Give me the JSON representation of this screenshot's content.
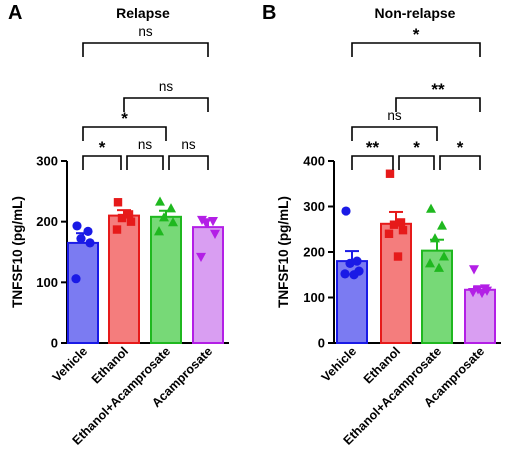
{
  "chart_data": [
    {
      "type": "bar",
      "panel": "A",
      "title": "Relapse",
      "ylabel": "TNFSF10 (pg/mL)",
      "ylim": [
        0,
        300
      ],
      "yticks": [
        0,
        100,
        200,
        300
      ],
      "categories": [
        "Vehicle",
        "Ethanol",
        "Ethanol+Acamprosate",
        "Acamprosate"
      ],
      "colors": {
        "fill": [
          "#7b7bf2",
          "#f47d7d",
          "#77d977",
          "#d99ef2"
        ],
        "stroke": [
          "#1a1ae6",
          "#e61a1a",
          "#1fb81f",
          "#b31fe6"
        ]
      },
      "markers": [
        "circle",
        "square",
        "triangle-up",
        "triangle-down"
      ],
      "values": [
        165,
        210,
        208,
        191
      ],
      "sem": [
        16,
        9,
        10,
        13
      ],
      "points": [
        [
          193,
          184,
          172,
          165,
          106
        ],
        [
          232,
          212,
          206,
          200,
          187
        ],
        [
          233,
          222,
          207,
          199,
          184
        ],
        [
          203,
          201,
          198,
          180,
          142
        ]
      ],
      "comparisons": [
        {
          "from": 0,
          "to": 1,
          "label": "*"
        },
        {
          "from": 1,
          "to": 2,
          "label": "ns"
        },
        {
          "from": 2,
          "to": 3,
          "label": "ns"
        },
        {
          "from": 0,
          "to": 2,
          "label": "*"
        },
        {
          "from": 1,
          "to": 3,
          "label": "ns"
        },
        {
          "from": 0,
          "to": 3,
          "label": "ns"
        }
      ]
    },
    {
      "type": "bar",
      "panel": "B",
      "title": "Non-relapse",
      "ylabel": "TNFSF10 (pg/mL)",
      "ylim": [
        0,
        400
      ],
      "yticks": [
        0,
        100,
        200,
        300,
        400
      ],
      "categories": [
        "Vehicle",
        "Ethanol",
        "Ethanol+Acamprosate",
        "Acamprosate"
      ],
      "colors": {
        "fill": [
          "#7b7bf2",
          "#f47d7d",
          "#77d977",
          "#d99ef2"
        ],
        "stroke": [
          "#1a1ae6",
          "#e61a1a",
          "#1fb81f",
          "#b31fe6"
        ]
      },
      "markers": [
        "circle",
        "square",
        "triangle-up",
        "triangle-down"
      ],
      "values": [
        180,
        262,
        203,
        117
      ],
      "sem": [
        22,
        26,
        24,
        6
      ],
      "points": [
        [
          290,
          180,
          175,
          158,
          152,
          150
        ],
        [
          372,
          265,
          260,
          248,
          240,
          190
        ],
        [
          295,
          258,
          230,
          190,
          175,
          165
        ],
        [
          162,
          120,
          118,
          115,
          112,
          110
        ]
      ],
      "comparisons": [
        {
          "from": 0,
          "to": 1,
          "label": "**"
        },
        {
          "from": 1,
          "to": 2,
          "label": "*"
        },
        {
          "from": 2,
          "to": 3,
          "label": "*"
        },
        {
          "from": 0,
          "to": 2,
          "label": "ns"
        },
        {
          "from": 1,
          "to": 3,
          "label": "**"
        },
        {
          "from": 0,
          "to": 3,
          "label": "*"
        }
      ]
    }
  ]
}
